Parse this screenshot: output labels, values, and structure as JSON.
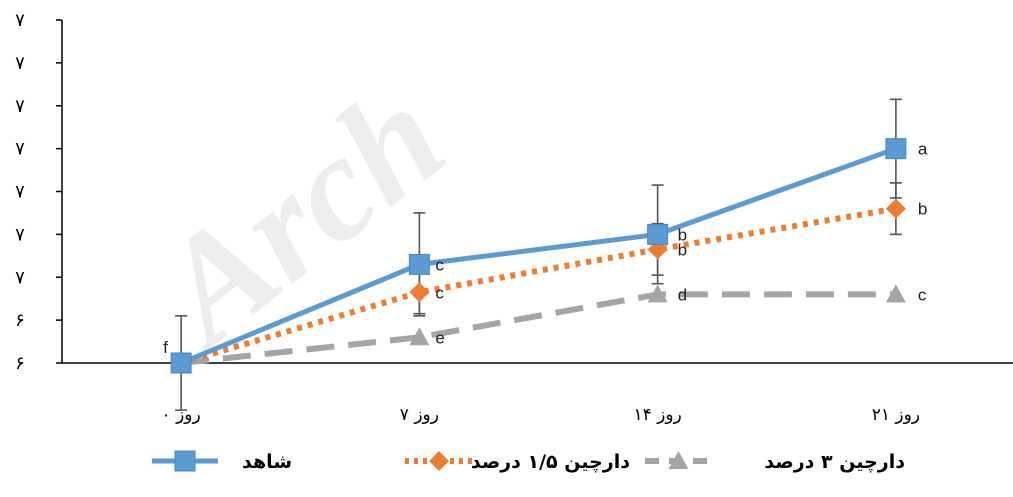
{
  "chart_data": {
    "type": "line",
    "title": "",
    "xlabel": "",
    "ylabel": "",
    "categories": [
      "روز ۰",
      "روز ۷",
      "روز ۱۴",
      "روز ۲۱"
    ],
    "y_tick_labels": [
      "۶",
      "۶",
      "۷",
      "۷",
      "۷",
      "۷",
      "۷",
      "۷",
      "۷"
    ],
    "ylim": [
      0,
      8
    ],
    "watermark": "Arch",
    "series": [
      {
        "name": "شاهد",
        "color": "#5B9BD5",
        "style": "solid",
        "marker": "square",
        "values": [
          0,
          2.3,
          3.0,
          5.0
        ],
        "errors": [
          1.1,
          1.2,
          1.15,
          1.15
        ],
        "labels": [
          "",
          "c",
          "b",
          "a"
        ]
      },
      {
        "name": "دارچین ۱/۵ درصد",
        "color": "#ED7D31",
        "style": "dotted",
        "marker": "diamond",
        "values": [
          0,
          1.65,
          2.65,
          3.6
        ],
        "errors": [
          0,
          0.5,
          0.6,
          0.6
        ],
        "labels": [
          "",
          "c",
          "b",
          "b"
        ]
      },
      {
        "name": "دارچین ۳ درصد",
        "color": "#A5A5A5",
        "style": "dashed",
        "marker": "triangle",
        "values": [
          0,
          0.6,
          1.6,
          1.6
        ],
        "errors": [
          0,
          0,
          0,
          0
        ],
        "labels": [
          "f",
          "e",
          "d",
          "c"
        ]
      }
    ]
  }
}
